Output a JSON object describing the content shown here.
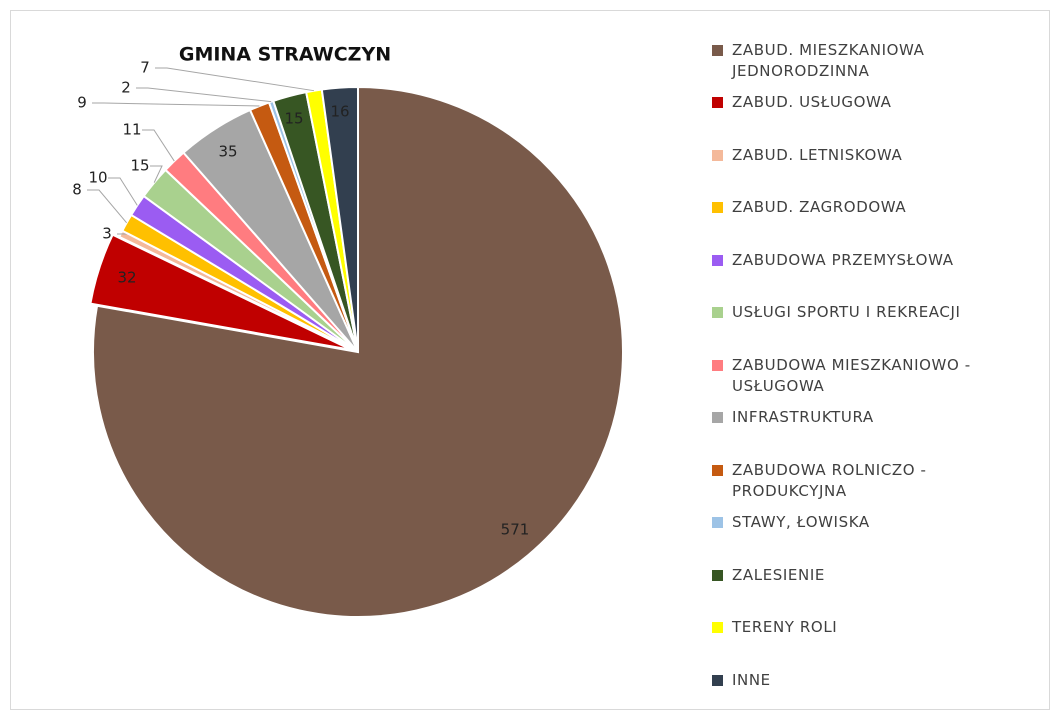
{
  "chart_data": {
    "type": "pie",
    "title": "GMINA STRAWCZYN",
    "categories": [
      "ZABUD. MIESZKANIOWA JEDNORODZINNA",
      "ZABUD. USŁUGOWA",
      "ZABUD. LETNISKOWA",
      "ZABUD. ZAGRODOWA",
      "ZABUDOWA PRZEMYSŁOWA",
      "USŁUGI SPORTU I REKREACJI",
      "ZABUDOWA MIESZKANIOWO - USŁUGOWA",
      "INFRASTRUKTURA",
      "ZABUDOWA ROLNICZO - PRODUKCYJNA",
      "STAWY, ŁOWISKA",
      "ZALESIENIE",
      "TERENY ROLI",
      "INNE"
    ],
    "values": [
      571,
      32,
      3,
      8,
      10,
      15,
      11,
      35,
      9,
      2,
      15,
      7,
      16
    ],
    "colors": [
      "#795a4a",
      "#c00000",
      "#f4b99a",
      "#ffc000",
      "#9b5cf2",
      "#a9d18e",
      "#ff7c80",
      "#a6a6a6",
      "#c55a11",
      "#9dc3e6",
      "#375623",
      "#ffff00",
      "#323f4f"
    ],
    "legend": "right"
  }
}
